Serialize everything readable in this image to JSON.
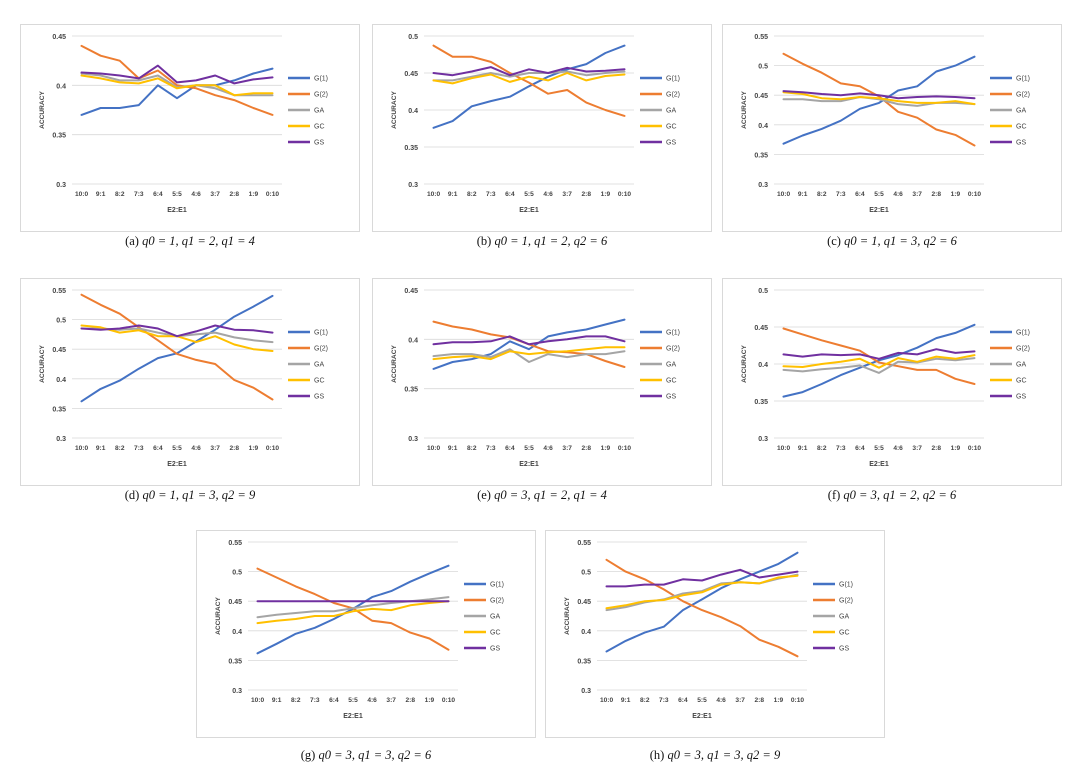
{
  "chart_data": [
    {
      "type": "line",
      "caption": "(a)",
      "caption_params": "q0 = 1, q1 = 2, q1 = 4",
      "categories": [
        "10:0",
        "9:1",
        "8:2",
        "7:3",
        "6:4",
        "5:5",
        "4:6",
        "3:7",
        "2:8",
        "1:9",
        "0:10"
      ],
      "xlabel": "E2:E1",
      "ylabel": "ACCURACY",
      "ylim": [
        0.3,
        0.45
      ],
      "yticks": [
        0.3,
        0.35,
        0.4,
        0.45
      ],
      "ytick_labels": [
        "0.3",
        "0.35",
        "0.4",
        "0.45"
      ],
      "legend_position": "right",
      "series": [
        {
          "name": "G(1)",
          "color": "#4472C4",
          "values": [
            0.37,
            0.377,
            0.377,
            0.38,
            0.4,
            0.387,
            0.4,
            0.4,
            0.405,
            0.412,
            0.417
          ]
        },
        {
          "name": "G(2)",
          "color": "#ED7D31",
          "values": [
            0.44,
            0.43,
            0.425,
            0.407,
            0.415,
            0.4,
            0.397,
            0.39,
            0.385,
            0.377,
            0.37
          ]
        },
        {
          "name": "GA",
          "color": "#A5A5A5",
          "values": [
            0.412,
            0.41,
            0.405,
            0.405,
            0.41,
            0.398,
            0.4,
            0.397,
            0.39,
            0.39,
            0.39
          ]
        },
        {
          "name": "GC",
          "color": "#FFC000",
          "values": [
            0.41,
            0.407,
            0.403,
            0.402,
            0.407,
            0.397,
            0.4,
            0.4,
            0.39,
            0.392,
            0.392
          ]
        },
        {
          "name": "GS",
          "color": "#7030A0",
          "values": [
            0.413,
            0.412,
            0.41,
            0.407,
            0.42,
            0.403,
            0.405,
            0.41,
            0.402,
            0.406,
            0.408
          ]
        }
      ]
    },
    {
      "type": "line",
      "caption": "(b)",
      "caption_params": "q0 = 1, q1 = 2, q2 = 6",
      "categories": [
        "10:0",
        "9:1",
        "8:2",
        "7:3",
        "6:4",
        "5:5",
        "4:6",
        "3:7",
        "2:8",
        "1:9",
        "0:10"
      ],
      "xlabel": "E2:E1",
      "ylabel": "ACCURACY",
      "ylim": [
        0.3,
        0.5
      ],
      "yticks": [
        0.3,
        0.35,
        0.4,
        0.45,
        0.5
      ],
      "ytick_labels": [
        "0.3",
        "0.35",
        "0.4",
        "0.45",
        "0.5"
      ],
      "legend_position": "right",
      "series": [
        {
          "name": "G(1)",
          "color": "#4472C4",
          "values": [
            0.376,
            0.385,
            0.405,
            0.412,
            0.418,
            0.432,
            0.445,
            0.455,
            0.462,
            0.477,
            0.487
          ]
        },
        {
          "name": "G(2)",
          "color": "#ED7D31",
          "values": [
            0.487,
            0.472,
            0.472,
            0.465,
            0.45,
            0.437,
            0.422,
            0.427,
            0.41,
            0.4,
            0.392
          ]
        },
        {
          "name": "GA",
          "color": "#A5A5A5",
          "values": [
            0.44,
            0.44,
            0.445,
            0.45,
            0.445,
            0.45,
            0.45,
            0.452,
            0.447,
            0.45,
            0.452
          ]
        },
        {
          "name": "GC",
          "color": "#FFC000",
          "values": [
            0.44,
            0.436,
            0.443,
            0.448,
            0.438,
            0.445,
            0.44,
            0.45,
            0.44,
            0.446,
            0.448
          ]
        },
        {
          "name": "GS",
          "color": "#7030A0",
          "values": [
            0.45,
            0.447,
            0.452,
            0.458,
            0.447,
            0.455,
            0.45,
            0.457,
            0.452,
            0.453,
            0.455
          ]
        }
      ]
    },
    {
      "type": "line",
      "caption": "(c)",
      "caption_params": "q0 = 1, q1 = 3, q2 = 6",
      "categories": [
        "10:0",
        "9:1",
        "8:2",
        "7:3",
        "6:4",
        "5:5",
        "4:6",
        "3:7",
        "2:8",
        "1:9",
        "0:10"
      ],
      "xlabel": "E2:E1",
      "ylabel": "ACCURACY",
      "ylim": [
        0.3,
        0.55
      ],
      "yticks": [
        0.3,
        0.35,
        0.4,
        0.45,
        0.5,
        0.55
      ],
      "ytick_labels": [
        "0.3",
        "0.35",
        "0.4",
        "0.45",
        "0.5",
        "0.55"
      ],
      "legend_position": "right",
      "series": [
        {
          "name": "G(1)",
          "color": "#4472C4",
          "values": [
            0.368,
            0.382,
            0.393,
            0.407,
            0.427,
            0.437,
            0.458,
            0.465,
            0.49,
            0.5,
            0.515
          ]
        },
        {
          "name": "G(2)",
          "color": "#ED7D31",
          "values": [
            0.52,
            0.503,
            0.488,
            0.47,
            0.465,
            0.448,
            0.422,
            0.412,
            0.392,
            0.383,
            0.365
          ]
        },
        {
          "name": "GA",
          "color": "#A5A5A5",
          "values": [
            0.443,
            0.443,
            0.44,
            0.44,
            0.447,
            0.443,
            0.435,
            0.432,
            0.437,
            0.437,
            0.435
          ]
        },
        {
          "name": "GC",
          "color": "#FFC000",
          "values": [
            0.455,
            0.452,
            0.445,
            0.443,
            0.447,
            0.445,
            0.44,
            0.437,
            0.437,
            0.44,
            0.435
          ]
        },
        {
          "name": "GS",
          "color": "#7030A0",
          "values": [
            0.457,
            0.455,
            0.452,
            0.45,
            0.453,
            0.45,
            0.445,
            0.447,
            0.448,
            0.447,
            0.445
          ]
        }
      ]
    },
    {
      "type": "line",
      "caption": "(d)",
      "caption_params": "q0 = 1, q1 = 3, q2 = 9",
      "categories": [
        "10:0",
        "9:1",
        "8:2",
        "7:3",
        "6:4",
        "5:5",
        "4:6",
        "3:7",
        "2:8",
        "1:9",
        "0:10"
      ],
      "xlabel": "E2:E1",
      "ylabel": "ACCURACY",
      "ylim": [
        0.3,
        0.55
      ],
      "yticks": [
        0.3,
        0.35,
        0.4,
        0.45,
        0.5,
        0.55
      ],
      "ytick_labels": [
        "0.3",
        "0.35",
        "0.4",
        "0.45",
        "0.5",
        "0.55"
      ],
      "legend_position": "right",
      "series": [
        {
          "name": "G(1)",
          "color": "#4472C4",
          "values": [
            0.362,
            0.383,
            0.397,
            0.417,
            0.435,
            0.443,
            0.463,
            0.483,
            0.505,
            0.522,
            0.54
          ]
        },
        {
          "name": "G(2)",
          "color": "#ED7D31",
          "values": [
            0.542,
            0.525,
            0.51,
            0.487,
            0.465,
            0.442,
            0.432,
            0.425,
            0.398,
            0.385,
            0.365
          ]
        },
        {
          "name": "GA",
          "color": "#A5A5A5",
          "values": [
            0.485,
            0.485,
            0.483,
            0.485,
            0.478,
            0.472,
            0.475,
            0.478,
            0.47,
            0.465,
            0.462
          ]
        },
        {
          "name": "GC",
          "color": "#FFC000",
          "values": [
            0.49,
            0.487,
            0.478,
            0.482,
            0.472,
            0.472,
            0.462,
            0.472,
            0.458,
            0.45,
            0.447
          ]
        },
        {
          "name": "GS",
          "color": "#7030A0",
          "values": [
            0.485,
            0.483,
            0.485,
            0.49,
            0.485,
            0.472,
            0.48,
            0.49,
            0.483,
            0.482,
            0.478
          ]
        }
      ]
    },
    {
      "type": "line",
      "caption": "(e)",
      "caption_params": "q0 = 3, q1 = 2, q1 = 4",
      "categories": [
        "10:0",
        "9:1",
        "8:2",
        "7:3",
        "6:4",
        "5:5",
        "4:6",
        "3:7",
        "2:8",
        "1:9",
        "0:10"
      ],
      "xlabel": "E2:E1",
      "ylabel": "ACCURACY",
      "ylim": [
        0.3,
        0.45
      ],
      "yticks": [
        0.3,
        0.35,
        0.4,
        0.45
      ],
      "ytick_labels": [
        "0.3",
        "0.35",
        "0.4",
        "0.45"
      ],
      "legend_position": "right",
      "series": [
        {
          "name": "G(1)",
          "color": "#4472C4",
          "values": [
            0.37,
            0.377,
            0.38,
            0.385,
            0.398,
            0.39,
            0.403,
            0.407,
            0.41,
            0.415,
            0.42
          ]
        },
        {
          "name": "G(2)",
          "color": "#ED7D31",
          "values": [
            0.418,
            0.413,
            0.41,
            0.405,
            0.402,
            0.395,
            0.388,
            0.387,
            0.385,
            0.378,
            0.372
          ]
        },
        {
          "name": "GA",
          "color": "#A5A5A5",
          "values": [
            0.383,
            0.385,
            0.385,
            0.382,
            0.39,
            0.377,
            0.385,
            0.382,
            0.385,
            0.385,
            0.388
          ]
        },
        {
          "name": "GC",
          "color": "#FFC000",
          "values": [
            0.38,
            0.382,
            0.383,
            0.38,
            0.388,
            0.385,
            0.387,
            0.388,
            0.39,
            0.392,
            0.392
          ]
        },
        {
          "name": "GS",
          "color": "#7030A0",
          "values": [
            0.395,
            0.397,
            0.397,
            0.398,
            0.403,
            0.395,
            0.398,
            0.4,
            0.403,
            0.403,
            0.398
          ]
        }
      ]
    },
    {
      "type": "line",
      "caption": "(f)",
      "caption_params": "q0 = 3, q1 = 2, q2 = 6",
      "categories": [
        "10:0",
        "9:1",
        "8:2",
        "7:3",
        "6:4",
        "5:5",
        "4:6",
        "3:7",
        "2:8",
        "1:9",
        "0:10"
      ],
      "xlabel": "E2:E1",
      "ylabel": "ACCURACY",
      "ylim": [
        0.3,
        0.5
      ],
      "yticks": [
        0.3,
        0.35,
        0.4,
        0.45,
        0.5
      ],
      "ytick_labels": [
        "0.3",
        "0.35",
        "0.4",
        "0.45",
        "0.5"
      ],
      "legend_position": "right",
      "series": [
        {
          "name": "G(1)",
          "color": "#4472C4",
          "values": [
            0.356,
            0.362,
            0.373,
            0.385,
            0.395,
            0.405,
            0.412,
            0.422,
            0.435,
            0.442,
            0.453
          ]
        },
        {
          "name": "G(2)",
          "color": "#ED7D31",
          "values": [
            0.448,
            0.44,
            0.432,
            0.425,
            0.418,
            0.402,
            0.397,
            0.392,
            0.392,
            0.38,
            0.373
          ]
        },
        {
          "name": "GA",
          "color": "#A5A5A5",
          "values": [
            0.392,
            0.39,
            0.393,
            0.395,
            0.398,
            0.388,
            0.403,
            0.402,
            0.407,
            0.405,
            0.408
          ]
        },
        {
          "name": "GC",
          "color": "#FFC000",
          "values": [
            0.397,
            0.396,
            0.4,
            0.403,
            0.407,
            0.395,
            0.408,
            0.403,
            0.41,
            0.407,
            0.412
          ]
        },
        {
          "name": "GS",
          "color": "#7030A0",
          "values": [
            0.413,
            0.41,
            0.413,
            0.412,
            0.413,
            0.407,
            0.415,
            0.413,
            0.42,
            0.415,
            0.417
          ]
        }
      ]
    },
    {
      "type": "line",
      "caption": "(g)",
      "caption_params": "q0 = 3, q1 = 3, q2 = 6",
      "categories": [
        "10:0",
        "9:1",
        "8:2",
        "7:3",
        "6:4",
        "5:5",
        "4:6",
        "3:7",
        "2:8",
        "1:9",
        "0:10"
      ],
      "xlabel": "E2:E1",
      "ylabel": "ACCURACY",
      "ylim": [
        0.3,
        0.55
      ],
      "yticks": [
        0.3,
        0.35,
        0.4,
        0.45,
        0.5,
        0.55
      ],
      "ytick_labels": [
        "0.3",
        "0.35",
        "0.4",
        "0.45",
        "0.5",
        "0.55"
      ],
      "legend_position": "right",
      "series": [
        {
          "name": "G(1)",
          "color": "#4472C4",
          "values": [
            0.362,
            0.378,
            0.395,
            0.405,
            0.42,
            0.437,
            0.457,
            0.467,
            0.483,
            0.497,
            0.51
          ]
        },
        {
          "name": "G(2)",
          "color": "#ED7D31",
          "values": [
            0.505,
            0.49,
            0.475,
            0.462,
            0.447,
            0.438,
            0.417,
            0.413,
            0.397,
            0.387,
            0.368
          ]
        },
        {
          "name": "GA",
          "color": "#A5A5A5",
          "values": [
            0.423,
            0.427,
            0.43,
            0.433,
            0.433,
            0.438,
            0.443,
            0.447,
            0.45,
            0.453,
            0.457
          ]
        },
        {
          "name": "GC",
          "color": "#FFC000",
          "values": [
            0.413,
            0.417,
            0.42,
            0.425,
            0.425,
            0.433,
            0.437,
            0.435,
            0.443,
            0.447,
            0.45
          ]
        },
        {
          "name": "GS",
          "color": "#7030A0",
          "values": [
            0.45,
            0.45,
            0.45,
            0.45,
            0.45,
            0.45,
            0.45,
            0.45,
            0.45,
            0.45,
            0.45
          ]
        }
      ]
    },
    {
      "type": "line",
      "caption": "(h)",
      "caption_params": "q0 = 3, q1 = 3, q2 = 9",
      "categories": [
        "10:0",
        "9:1",
        "8:2",
        "7:3",
        "6:4",
        "5:5",
        "4:6",
        "3:7",
        "2:8",
        "1:9",
        "0:10"
      ],
      "xlabel": "E2:E1",
      "ylabel": "ACCURACY",
      "ylim": [
        0.3,
        0.55
      ],
      "yticks": [
        0.3,
        0.35,
        0.4,
        0.45,
        0.5,
        0.55
      ],
      "ytick_labels": [
        "0.3",
        "0.35",
        "0.4",
        "0.45",
        "0.5",
        "0.55"
      ],
      "legend_position": "right",
      "series": [
        {
          "name": "G(1)",
          "color": "#4472C4",
          "values": [
            0.365,
            0.383,
            0.397,
            0.407,
            0.435,
            0.453,
            0.472,
            0.487,
            0.5,
            0.513,
            0.532
          ]
        },
        {
          "name": "G(2)",
          "color": "#ED7D31",
          "values": [
            0.52,
            0.5,
            0.487,
            0.47,
            0.45,
            0.435,
            0.423,
            0.408,
            0.385,
            0.373,
            0.357
          ]
        },
        {
          "name": "GA",
          "color": "#A5A5A5",
          "values": [
            0.435,
            0.44,
            0.448,
            0.453,
            0.463,
            0.467,
            0.48,
            0.482,
            0.48,
            0.488,
            0.495
          ]
        },
        {
          "name": "GC",
          "color": "#FFC000",
          "values": [
            0.438,
            0.443,
            0.45,
            0.452,
            0.46,
            0.465,
            0.478,
            0.482,
            0.48,
            0.49,
            0.493
          ]
        },
        {
          "name": "GS",
          "color": "#7030A0",
          "values": [
            0.475,
            0.475,
            0.478,
            0.478,
            0.487,
            0.485,
            0.495,
            0.503,
            0.49,
            0.495,
            0.5
          ]
        }
      ]
    }
  ]
}
